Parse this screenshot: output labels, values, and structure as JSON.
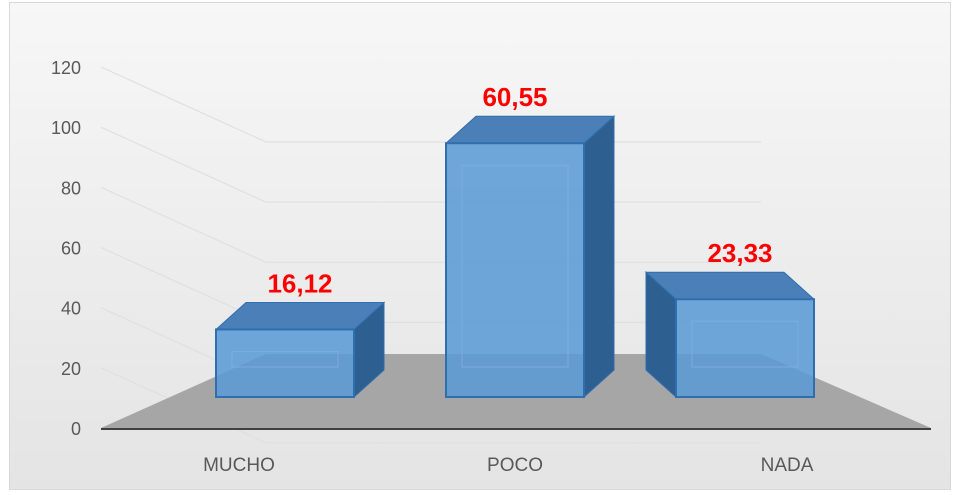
{
  "chart_data": {
    "type": "bar",
    "categories": [
      "MUCHO",
      "POCO",
      "NADA"
    ],
    "values": [
      16.12,
      60.55,
      23.33
    ],
    "data_labels": [
      "16,12",
      "60,55",
      "23,33"
    ],
    "yticks": [
      "0",
      "20",
      "40",
      "60",
      "80",
      "100",
      "120"
    ],
    "ylim": [
      0,
      120
    ],
    "title": "",
    "xlabel": "",
    "ylabel": "",
    "grid": true,
    "legend": "none",
    "style": "3d-column",
    "colors": {
      "bar_front": "#5b9bd5",
      "bar_top": "#4a7fb8",
      "bar_side": "#2e5f91",
      "bar_edge": "#2f6fb0",
      "data_label": "#ff0000",
      "floor": "#a6a6a6",
      "gridline": "#e0e0e0",
      "axis_line": "#404040"
    }
  }
}
